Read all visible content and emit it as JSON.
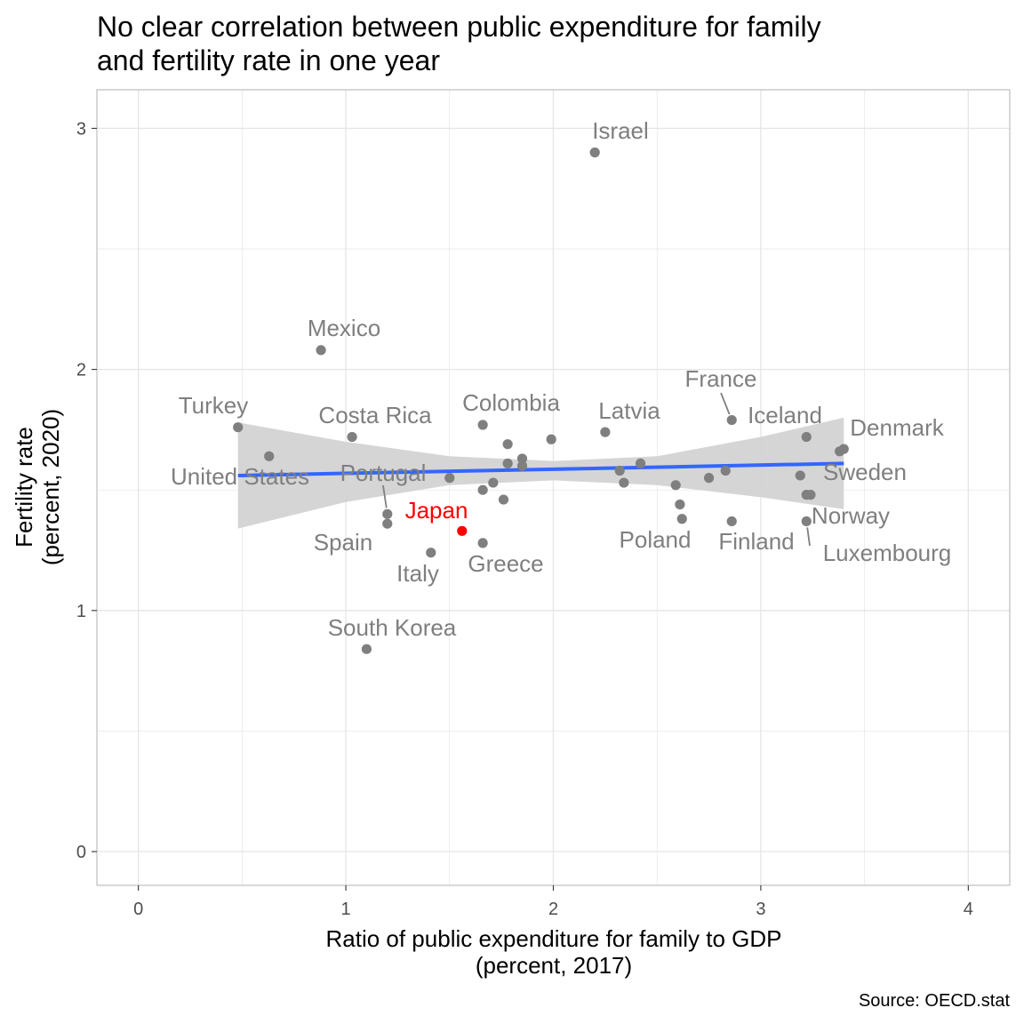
{
  "chart_data": {
    "type": "scatter",
    "title_lines": [
      "No clear correlation between public expenditure for family",
      "and fertility rate in one year"
    ],
    "xlabel_lines": [
      "Ratio of public expenditure for family to GDP",
      "(percent, 2017)"
    ],
    "ylabel_lines": [
      "Fertility rate",
      "(percent, 2020)"
    ],
    "caption": "Source: OECD.stat",
    "xlim": [
      -0.2,
      4.2
    ],
    "ylim": [
      -0.14,
      3.16
    ],
    "x_ticks": [
      0,
      1,
      2,
      3,
      4
    ],
    "x_tick_labels": [
      "0",
      "1",
      "2",
      "3",
      "4"
    ],
    "y_ticks": [
      0,
      1,
      2,
      3
    ],
    "y_tick_labels": [
      "0",
      "1",
      "2",
      "3"
    ],
    "grid": true,
    "colors": {
      "point": "#7f7f7f",
      "label": "#7f7f7f",
      "highlight": "#ff0000",
      "trend": "#3366ff",
      "ribbon": "#d3d3d3",
      "grid": "#e5e5e5",
      "panel_border": "#bfbfbf"
    },
    "points": [
      {
        "label": "Israel",
        "x": 2.2,
        "y": 2.9
      },
      {
        "label": "Mexico",
        "x": 0.88,
        "y": 2.08
      },
      {
        "label": "Turkey",
        "x": 0.48,
        "y": 1.76
      },
      {
        "label": "United States",
        "x": 0.63,
        "y": 1.64
      },
      {
        "label": "Costa Rica",
        "x": 1.03,
        "y": 1.72
      },
      {
        "label": "Colombia",
        "x": 1.66,
        "y": 1.77
      },
      {
        "label": "Latvia",
        "x": 2.25,
        "y": 1.74
      },
      {
        "label": "France",
        "x": 2.86,
        "y": 1.79
      },
      {
        "label": "Iceland",
        "x": 3.22,
        "y": 1.72
      },
      {
        "label": "Denmark",
        "x": 3.4,
        "y": 1.67
      },
      {
        "label": "Sweden",
        "x": 3.38,
        "y": 1.66
      },
      {
        "label": "Portugal",
        "x": 1.2,
        "y": 1.4
      },
      {
        "label": "Spain",
        "x": 1.2,
        "y": 1.36
      },
      {
        "label": "Japan",
        "x": 1.56,
        "y": 1.33,
        "highlight": true
      },
      {
        "label": "Italy",
        "x": 1.41,
        "y": 1.24
      },
      {
        "label": "Greece",
        "x": 1.66,
        "y": 1.28
      },
      {
        "label": "South Korea",
        "x": 1.1,
        "y": 0.84
      },
      {
        "label": "Poland",
        "x": 2.62,
        "y": 1.38
      },
      {
        "label": "Finland",
        "x": 2.86,
        "y": 1.37
      },
      {
        "label": "Norway",
        "x": 3.22,
        "y": 1.48
      },
      {
        "label": "Luxembourg",
        "x": 3.22,
        "y": 1.37
      },
      {
        "label": "",
        "x": 1.5,
        "y": 1.55
      },
      {
        "label": "",
        "x": 1.66,
        "y": 1.5
      },
      {
        "label": "",
        "x": 1.71,
        "y": 1.53
      },
      {
        "label": "",
        "x": 1.76,
        "y": 1.46
      },
      {
        "label": "",
        "x": 1.78,
        "y": 1.61
      },
      {
        "label": "",
        "x": 1.78,
        "y": 1.69
      },
      {
        "label": "",
        "x": 1.85,
        "y": 1.6
      },
      {
        "label": "",
        "x": 1.85,
        "y": 1.63
      },
      {
        "label": "",
        "x": 1.99,
        "y": 1.71
      },
      {
        "label": "",
        "x": 2.32,
        "y": 1.58
      },
      {
        "label": "",
        "x": 2.34,
        "y": 1.53
      },
      {
        "label": "",
        "x": 2.42,
        "y": 1.61
      },
      {
        "label": "",
        "x": 2.59,
        "y": 1.52
      },
      {
        "label": "",
        "x": 2.61,
        "y": 1.44
      },
      {
        "label": "",
        "x": 2.75,
        "y": 1.55
      },
      {
        "label": "",
        "x": 2.83,
        "y": 1.58
      },
      {
        "label": "",
        "x": 3.19,
        "y": 1.56
      },
      {
        "label": "",
        "x": 3.24,
        "y": 1.48
      }
    ],
    "trend": {
      "x": [
        0.48,
        3.4
      ],
      "y": [
        1.56,
        1.61
      ],
      "ribbon_x": [
        0.48,
        1.0,
        1.5,
        2.0,
        2.5,
        3.0,
        3.4
      ],
      "ribbon_lower": [
        1.34,
        1.45,
        1.52,
        1.54,
        1.52,
        1.47,
        1.42
      ],
      "ribbon_upper": [
        1.78,
        1.7,
        1.64,
        1.62,
        1.64,
        1.72,
        1.8
      ]
    }
  }
}
